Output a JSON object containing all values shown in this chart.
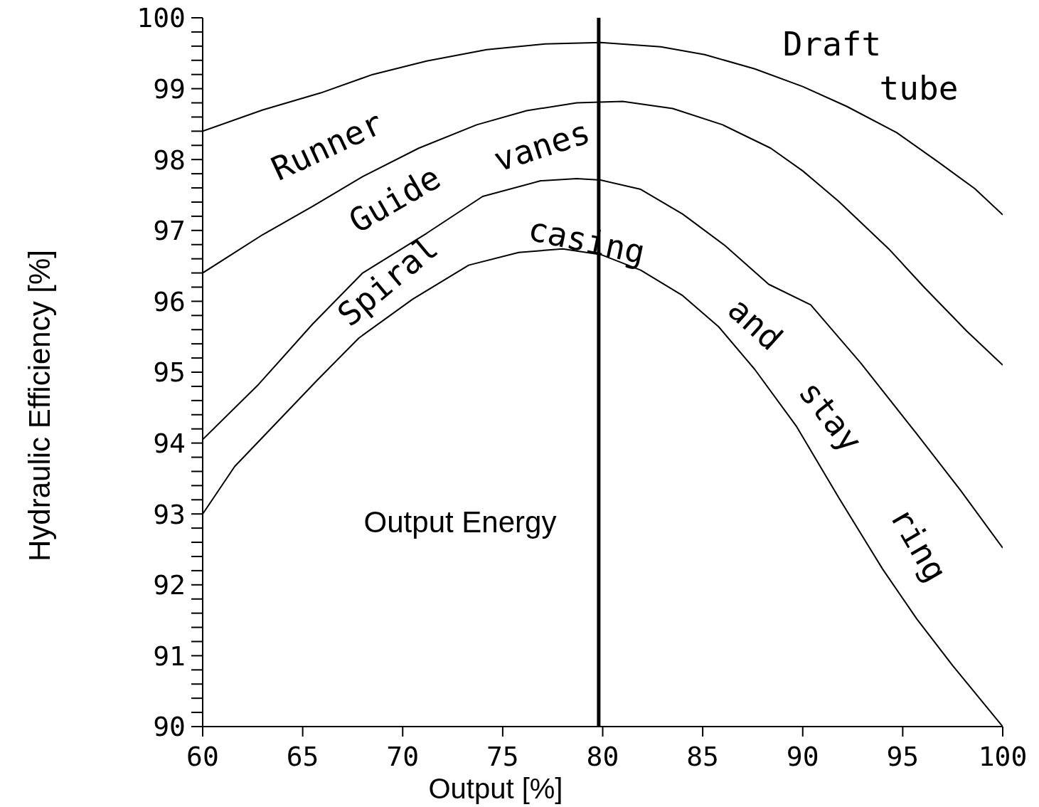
{
  "chart_data": {
    "type": "line",
    "xlabel": "Output  [%]",
    "ylabel": "Hydraulic Efficiency [%]",
    "annotations": [
      "Runner",
      "Guide vanes",
      "Spiral casing",
      "and stay ring",
      "Draft tube",
      "Output Energy"
    ],
    "series": [
      {
        "type": "line",
        "color": "#000000",
        "x": [
          60,
          63,
          65.9,
          68.5,
          71.2,
          74.2,
          77.1,
          79.9,
          82.9,
          85.1,
          87.6,
          90,
          92.2,
          94.7,
          96.8,
          98.6,
          100
        ],
        "values": [
          98.4,
          98.7,
          98.94,
          99.2,
          99.39,
          99.55,
          99.63,
          99.65,
          99.59,
          99.48,
          99.28,
          99.03,
          98.75,
          98.38,
          97.96,
          97.59,
          97.22
        ]
      },
      {
        "type": "line",
        "color": "#000000",
        "x": [
          60,
          63,
          65.5,
          68,
          70.8,
          73.7,
          76.2,
          78.7,
          81,
          83.5,
          86,
          88.4,
          90,
          91.8,
          94.3,
          96.1,
          98.2,
          100
        ],
        "values": [
          96.4,
          96.94,
          97.34,
          97.76,
          98.16,
          98.49,
          98.69,
          98.8,
          98.82,
          98.72,
          98.49,
          98.16,
          97.84,
          97.41,
          96.74,
          96.19,
          95.58,
          95.1
        ]
      },
      {
        "type": "line",
        "color": "#000000",
        "x": [
          60,
          62.8,
          65.5,
          68,
          71.2,
          74,
          76.9,
          78.7,
          79.9,
          81.9,
          84,
          86.1,
          88.3,
          90.4,
          92.9,
          95.7,
          97.9,
          100
        ],
        "values": [
          94.05,
          94.83,
          95.68,
          96.4,
          96.96,
          97.48,
          97.7,
          97.73,
          97.71,
          97.58,
          97.23,
          96.79,
          96.24,
          95.95,
          95.13,
          94.13,
          93.33,
          92.52
        ]
      },
      {
        "type": "line",
        "color": "#000000",
        "x": [
          60,
          61.6,
          63.6,
          65.7,
          67.8,
          70.5,
          73.3,
          75.8,
          78,
          79.9,
          81.9,
          84,
          85.8,
          87.6,
          89.7,
          91.8,
          94,
          95.7,
          97.5,
          100
        ],
        "values": [
          93,
          93.67,
          94.26,
          94.88,
          95.48,
          96.03,
          96.51,
          96.69,
          96.74,
          96.66,
          96.44,
          96.08,
          95.64,
          95.04,
          94.23,
          93.23,
          92.22,
          91.52,
          90.86,
          90
        ]
      }
    ],
    "xlim": [
      60,
      100
    ],
    "xticks": [
      60,
      65,
      70,
      75,
      80,
      85,
      90,
      95,
      100
    ],
    "ylim": [
      90,
      100
    ],
    "yticks": [
      90,
      {
        "value": 90.2,
        "label": null
      },
      {
        "value": 90.4,
        "label": null
      },
      {
        "value": 90.6,
        "label": null
      },
      {
        "value": 90.8,
        "label": null
      },
      91,
      {
        "value": 91.2,
        "label": null
      },
      {
        "value": 91.4,
        "label": null
      },
      {
        "value": 91.6,
        "label": null
      },
      {
        "value": 91.8,
        "label": null
      },
      92,
      {
        "value": 92.2,
        "label": null
      },
      {
        "value": 92.4,
        "label": null
      },
      {
        "value": 92.6,
        "label": null
      },
      {
        "value": 92.8,
        "label": null
      },
      93,
      {
        "value": 93.2,
        "label": null
      },
      {
        "value": 93.4,
        "label": null
      },
      {
        "value": 93.6,
        "label": null
      },
      {
        "value": 93.8,
        "label": null
      },
      94,
      {
        "value": 94.2,
        "label": null
      },
      {
        "value": 94.4,
        "label": null
      },
      {
        "value": 94.6,
        "label": null
      },
      {
        "value": 94.8,
        "label": null
      },
      95,
      {
        "value": 95.2,
        "label": null
      },
      {
        "value": 95.4,
        "label": null
      },
      {
        "value": 95.6,
        "label": null
      },
      {
        "value": 95.8,
        "label": null
      },
      96,
      {
        "value": 96.2,
        "label": null
      },
      {
        "value": 96.4,
        "label": null
      },
      {
        "value": 96.6,
        "label": null
      },
      {
        "value": 96.8,
        "label": null
      },
      97,
      {
        "value": 97.2,
        "label": null
      },
      {
        "value": 97.4,
        "label": null
      },
      {
        "value": 97.6,
        "label": null
      },
      {
        "value": 97.8,
        "label": null
      },
      98,
      {
        "value": 98.2,
        "label": null
      },
      {
        "value": 98.4,
        "label": null
      },
      {
        "value": 98.6,
        "label": null
      },
      {
        "value": 98.8,
        "label": null
      },
      99,
      {
        "value": 99.2,
        "label": null
      },
      {
        "value": 99.4,
        "label": null
      },
      {
        "value": 99.6,
        "label": null
      },
      {
        "value": 99.8,
        "label": null
      },
      100
    ],
    "ref_lines": [
      {
        "axis": "x",
        "value": 79.8,
        "color": "#000000"
      }
    ]
  }
}
